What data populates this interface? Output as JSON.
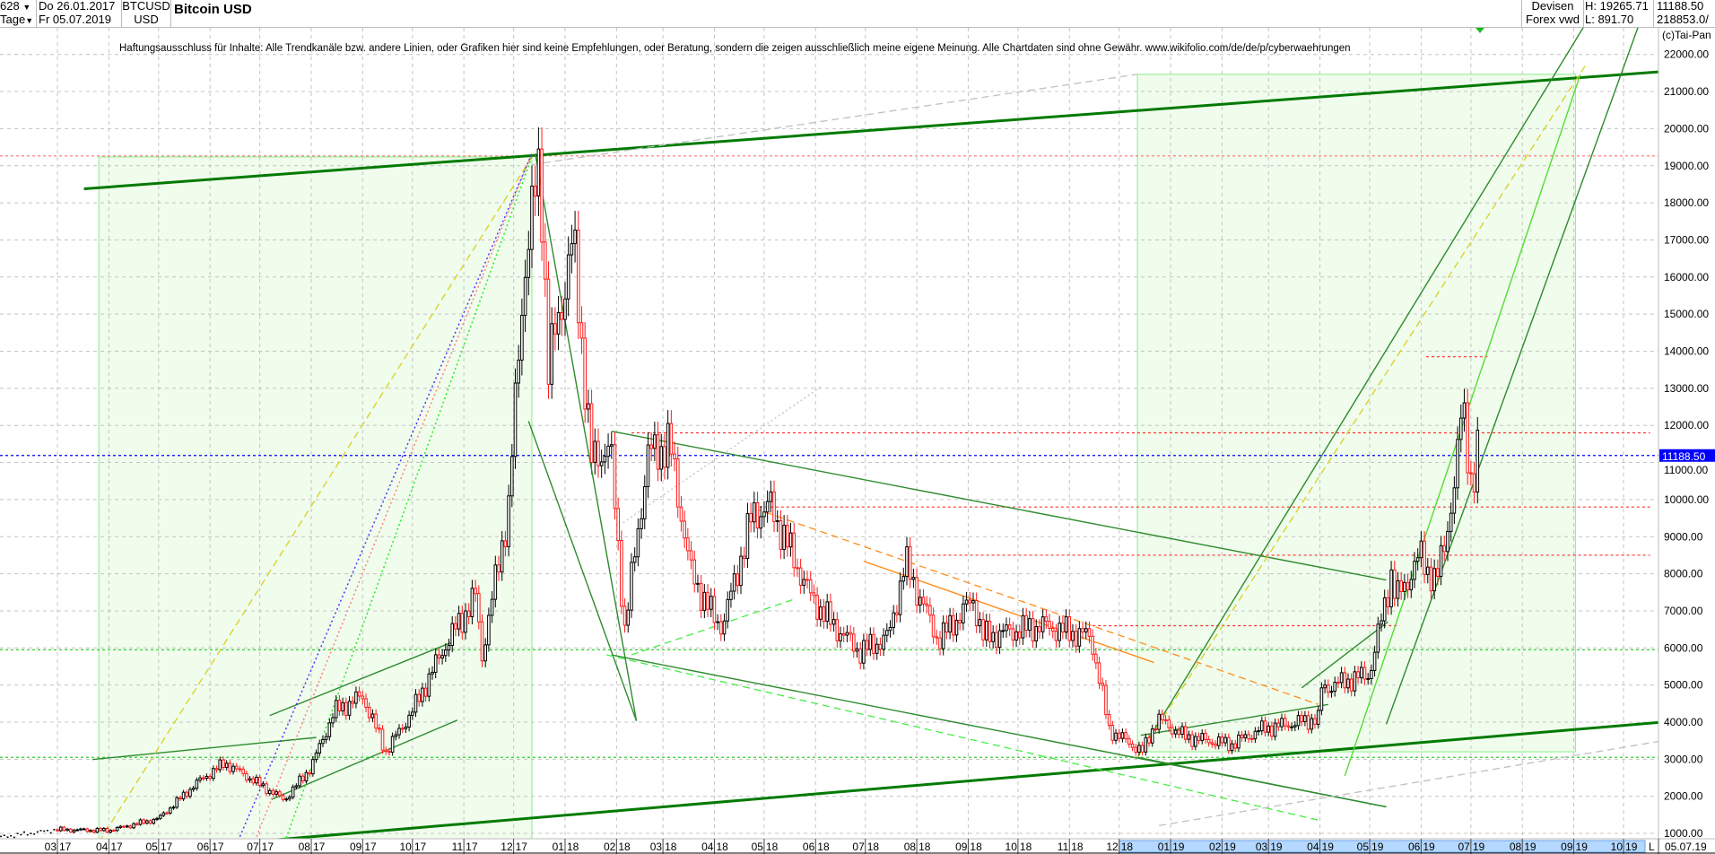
{
  "header": {
    "period_count": "628",
    "period_unit": "Tage",
    "date_from": "Do 26.01.2017",
    "date_to": "Fr 05.07.2019",
    "symbol": "BTCUSD",
    "currency": "USD",
    "title": "Bitcoin USD",
    "market_line1": "Devisen",
    "market_line2": "Forex vwd",
    "high": "H: 19265.71",
    "low": "L: 891.70",
    "last": "11188.50",
    "volume": "218853.0/",
    "copyright": "(c)Tai-Pan",
    "disclaimer": "Haftungsausschluss für Inhalte: Alle Trendkanäle bzw. andere Linien, oder Grafiken hier sind keine Empfehlungen, oder Beratung, sondern die zeigen ausschließlich meine eigene Meinung. Alle Chartdaten sind ohne Gewähr.  www.wikifolio.com/de/de/p/cyberwaehrungen",
    "axis_end_marker": "L",
    "axis_end_date": "05.07.19"
  },
  "colors": {
    "up": "#000000",
    "down": "#ff1a1a",
    "last_price": "#0000ff",
    "thick_trend": "#007a00",
    "shade": "#f0fcec"
  },
  "chart_data": {
    "type": "candlestick",
    "title": "Bitcoin USD",
    "ylim": [
      1000,
      22000
    ],
    "y_ticks": [
      "22000.00",
      "21000.00",
      "20000.00",
      "19000.00",
      "18000.00",
      "17000.00",
      "16000.00",
      "15000.00",
      "14000.00",
      "13000.00",
      "12000.00",
      "11000.00",
      "10000.00",
      "9000.00",
      "8000.00",
      "7000.00",
      "6000.00",
      "5000.00",
      "4000.00",
      "3000.00",
      "2000.00",
      "1000.00"
    ],
    "x_ticks": [
      {
        "m": "03",
        "y": "17",
        "date": "2017-03-01"
      },
      {
        "m": "04",
        "y": "17",
        "date": "2017-04-01"
      },
      {
        "m": "05",
        "y": "17",
        "date": "2017-05-01"
      },
      {
        "m": "06",
        "y": "17",
        "date": "2017-06-01"
      },
      {
        "m": "07",
        "y": "17",
        "date": "2017-07-01"
      },
      {
        "m": "08",
        "y": "17",
        "date": "2017-08-01"
      },
      {
        "m": "09",
        "y": "17",
        "date": "2017-09-01"
      },
      {
        "m": "10",
        "y": "17",
        "date": "2017-10-01"
      },
      {
        "m": "11",
        "y": "17",
        "date": "2017-11-01"
      },
      {
        "m": "12",
        "y": "17",
        "date": "2017-12-01"
      },
      {
        "m": "01",
        "y": "18",
        "date": "2018-01-01"
      },
      {
        "m": "02",
        "y": "18",
        "date": "2018-02-01"
      },
      {
        "m": "03",
        "y": "18",
        "date": "2018-03-01"
      },
      {
        "m": "04",
        "y": "18",
        "date": "2018-04-01"
      },
      {
        "m": "05",
        "y": "18",
        "date": "2018-05-01"
      },
      {
        "m": "06",
        "y": "18",
        "date": "2018-06-01"
      },
      {
        "m": "07",
        "y": "18",
        "date": "2018-07-01"
      },
      {
        "m": "08",
        "y": "18",
        "date": "2018-08-01"
      },
      {
        "m": "09",
        "y": "18",
        "date": "2018-09-01"
      },
      {
        "m": "10",
        "y": "18",
        "date": "2018-10-01"
      },
      {
        "m": "11",
        "y": "18",
        "date": "2018-11-01"
      },
      {
        "m": "12",
        "y": "18",
        "date": "2018-12-01"
      },
      {
        "m": "01",
        "y": "19",
        "date": "2019-01-01"
      },
      {
        "m": "02",
        "y": "19",
        "date": "2019-02-01"
      },
      {
        "m": "03",
        "y": "19",
        "date": "2019-03-01"
      },
      {
        "m": "04",
        "y": "19",
        "date": "2019-04-01"
      },
      {
        "m": "05",
        "y": "19",
        "date": "2019-05-01"
      },
      {
        "m": "06",
        "y": "19",
        "date": "2019-06-01"
      },
      {
        "m": "07",
        "y": "19",
        "date": "2019-07-01"
      },
      {
        "m": "08",
        "y": "19",
        "date": "2019-08-01"
      },
      {
        "m": "09",
        "y": "19",
        "date": "2019-09-01"
      },
      {
        "m": "10",
        "y": "19",
        "date": "2019-10-01"
      }
    ],
    "highlight_range": [
      "2018-12-01",
      "2019-10-31"
    ],
    "last_price": 11188.5,
    "price_path": [
      [
        "2017-01-26",
        900
      ],
      [
        "2017-03-01",
        1100
      ],
      [
        "2017-04-01",
        1080
      ],
      [
        "2017-05-01",
        1400
      ],
      [
        "2017-05-25",
        2400
      ],
      [
        "2017-06-10",
        2900
      ],
      [
        "2017-07-16",
        1900
      ],
      [
        "2017-08-01",
        2800
      ],
      [
        "2017-08-15",
        4300
      ],
      [
        "2017-09-01",
        4700
      ],
      [
        "2017-09-15",
        3200
      ],
      [
        "2017-10-01",
        4300
      ],
      [
        "2017-10-20",
        6000
      ],
      [
        "2017-11-08",
        7400
      ],
      [
        "2017-11-12",
        5800
      ],
      [
        "2017-11-28",
        9800
      ],
      [
        "2017-12-07",
        16000
      ],
      [
        "2017-12-17",
        19200
      ],
      [
        "2017-12-22",
        13500
      ],
      [
        "2018-01-06",
        17000
      ],
      [
        "2018-01-17",
        11000
      ],
      [
        "2018-01-28",
        11500
      ],
      [
        "2018-02-06",
        6500
      ],
      [
        "2018-02-20",
        11200
      ],
      [
        "2018-03-05",
        11500
      ],
      [
        "2018-03-18",
        8000
      ],
      [
        "2018-04-01",
        6800
      ],
      [
        "2018-04-06",
        6600
      ],
      [
        "2018-04-24",
        9600
      ],
      [
        "2018-05-05",
        9800
      ],
      [
        "2018-05-29",
        7400
      ],
      [
        "2018-06-10",
        6700
      ],
      [
        "2018-06-28",
        5900
      ],
      [
        "2018-07-15",
        6300
      ],
      [
        "2018-07-25",
        8300
      ],
      [
        "2018-08-14",
        6200
      ],
      [
        "2018-09-04",
        7300
      ],
      [
        "2018-09-10",
        6300
      ],
      [
        "2018-10-15",
        6600
      ],
      [
        "2018-11-14",
        6300
      ],
      [
        "2018-11-25",
        3800
      ],
      [
        "2018-12-15",
        3200
      ],
      [
        "2018-12-24",
        4100
      ],
      [
        "2019-01-10",
        3600
      ],
      [
        "2019-02-07",
        3400
      ],
      [
        "2019-02-24",
        3800
      ],
      [
        "2019-03-31",
        4100
      ],
      [
        "2019-04-02",
        4900
      ],
      [
        "2019-05-01",
        5300
      ],
      [
        "2019-05-14",
        8000
      ],
      [
        "2019-05-17",
        7300
      ],
      [
        "2019-06-01",
        8500
      ],
      [
        "2019-06-10",
        7700
      ],
      [
        "2019-06-22",
        10500
      ],
      [
        "2019-06-26",
        12900
      ],
      [
        "2019-07-02",
        10000
      ],
      [
        "2019-07-05",
        11188.5
      ]
    ],
    "shaded_boxes": [
      {
        "from": "2017-03-26",
        "to": "2017-12-12",
        "low": 764,
        "high": 19238
      },
      {
        "from": "2018-12-12",
        "to": "2019-09-02",
        "low": 3200,
        "high": 21465
      }
    ],
    "horizontal_levels": [
      {
        "price": 19265,
        "from": null,
        "to": null,
        "color": "#ff7070"
      },
      {
        "price": 11800,
        "from": "2018-02-10",
        "to": "2019-10-17",
        "color": "#ff3030"
      },
      {
        "price": 9800,
        "from": "2018-04-25",
        "to": "2019-10-17",
        "color": "#ff3030"
      },
      {
        "price": 8500,
        "from": "2018-07-22",
        "to": "2019-10-17",
        "color": "#ff3030"
      },
      {
        "price": 6600,
        "from": "2018-11-15",
        "to": "2019-05-19",
        "color": "#ff3030"
      },
      {
        "price": 13850,
        "from": "2019-06-04",
        "to": "2019-07-11",
        "color": "#ff3030"
      },
      {
        "price": 11188.5,
        "from": null,
        "to": null,
        "color": "#0000ff"
      },
      {
        "price": 5950,
        "from": null,
        "to": null,
        "color": "#30d030"
      },
      {
        "price": 3050,
        "from": null,
        "to": null,
        "color": "#30d030"
      }
    ],
    "trend_lines": [
      {
        "a": [
          "2017-03-17",
          18377
        ],
        "b": [
          "2019-11-25",
          21644
        ],
        "color": "#007a00",
        "style": "thick"
      },
      {
        "a": [
          "2017-01-26",
          200
        ],
        "b": [
          "2019-11-25",
          4121
        ],
        "color": "#007a00",
        "style": "thick"
      },
      {
        "a": [
          "2017-12-14",
          19327
        ],
        "b": [
          "2018-02-13",
          4032
        ],
        "color": "#2e8b2e",
        "style": "solid"
      },
      {
        "a": [
          "2017-12-10",
          12110
        ],
        "b": [
          "2018-02-13",
          4032
        ],
        "color": "#2e8b2e",
        "style": "solid"
      },
      {
        "a": [
          "2018-01-29",
          11843
        ],
        "b": [
          "2019-05-11",
          7833
        ],
        "color": "#2e8b2e",
        "style": "solid"
      },
      {
        "a": [
          "2018-01-29",
          5813
        ],
        "b": [
          "2019-05-11",
          1715
        ],
        "color": "#2e8b2e",
        "style": "solid"
      },
      {
        "a": [
          "2018-12-12",
          3051
        ],
        "b": [
          "2019-05-11",
          1715
        ],
        "color": "#2e8b2e",
        "style": "solid"
      },
      {
        "a": [
          "2018-12-12",
          3051
        ],
        "b": [
          "2019-09-09",
          22891
        ],
        "color": "#2e8b2e",
        "style": "solid"
      },
      {
        "a": [
          "2019-05-11",
          3942
        ],
        "b": [
          "2019-10-11",
          22891
        ],
        "color": "#2e8b2e",
        "style": "solid"
      },
      {
        "a": [
          "2018-12-14",
          3645
        ],
        "b": [
          "2019-04-06",
          4477
        ],
        "color": "#2e8b2e",
        "style": "solid"
      },
      {
        "a": [
          "2019-04-16",
          2548
        ],
        "b": [
          "2019-09-05",
          21465
        ],
        "color": "#55dd33",
        "style": "solid"
      },
      {
        "a": [
          "2019-03-21",
          4923
        ],
        "b": [
          "2019-05-12",
          6705
        ],
        "color": "#2e8b2e",
        "style": "solid"
      },
      {
        "a": [
          "2017-03-22",
          2992
        ],
        "b": [
          "2017-08-04",
          3586
        ],
        "color": "#2e8b2e",
        "style": "solid"
      },
      {
        "a": [
          "2017-07-07",
          4178
        ],
        "b": [
          "2017-10-24",
          6139
        ],
        "color": "#2e8b2e",
        "style": "solid"
      },
      {
        "a": [
          "2017-07-08",
          1915
        ],
        "b": [
          "2017-10-28",
          4053
        ],
        "color": "#2e8b2e",
        "style": "solid"
      },
      {
        "a": [
          "2018-01-26",
          5813
        ],
        "b": [
          "2019-03-31",
          1358
        ],
        "color": "#44ee44",
        "style": "dashed"
      },
      {
        "a": [
          "2018-02-10",
          5813
        ],
        "b": [
          "2018-05-18",
          7298
        ],
        "color": "#44ee44",
        "style": "dashed"
      },
      {
        "a": [
          "2018-04-25",
          9764
        ],
        "b": [
          "2019-03-31",
          4477
        ],
        "color": "#ff8c1a",
        "style": "dashed"
      },
      {
        "a": [
          "2018-06-30",
          8338
        ],
        "b": [
          "2018-12-22",
          5606
        ],
        "color": "#ff8c1a",
        "style": "solid"
      },
      {
        "a": [
          "2017-03-26",
          764
        ],
        "b": [
          "2017-12-12",
          19238
        ],
        "color": "#d8d020",
        "style": "dashed"
      },
      {
        "a": [
          "2018-12-12",
          3051
        ],
        "b": [
          "2019-09-08",
          21703
        ],
        "color": "#d8d020",
        "style": "dashed"
      },
      {
        "a": [
          "2017-12-12",
          19030
        ],
        "b": [
          "2018-12-12",
          21465
        ],
        "color": "#c0c0c0",
        "style": "dashed"
      },
      {
        "a": [
          "2018-12-25",
          1210
        ],
        "b": [
          "2019-11-25",
          3735
        ],
        "color": "#c0c0c0",
        "style": "dashed"
      },
      {
        "a": [
          "2018-02-05",
          9378
        ],
        "b": [
          "2018-06-04",
          13031
        ],
        "color": "#c8c8c8",
        "style": "dotted"
      },
      {
        "a": [
          "2017-06-19",
          913
        ],
        "b": [
          "2017-12-12",
          19327
        ],
        "color": "#5533ff",
        "style": "dotted"
      },
      {
        "a": [
          "2017-06-29",
          913
        ],
        "b": [
          "2017-12-12",
          19327
        ],
        "color": "#ff8080",
        "style": "dotted"
      },
      {
        "a": [
          "2017-07-16",
          764
        ],
        "b": [
          "2017-12-12",
          19238
        ],
        "color": "#22ee22",
        "style": "dotted"
      }
    ]
  }
}
